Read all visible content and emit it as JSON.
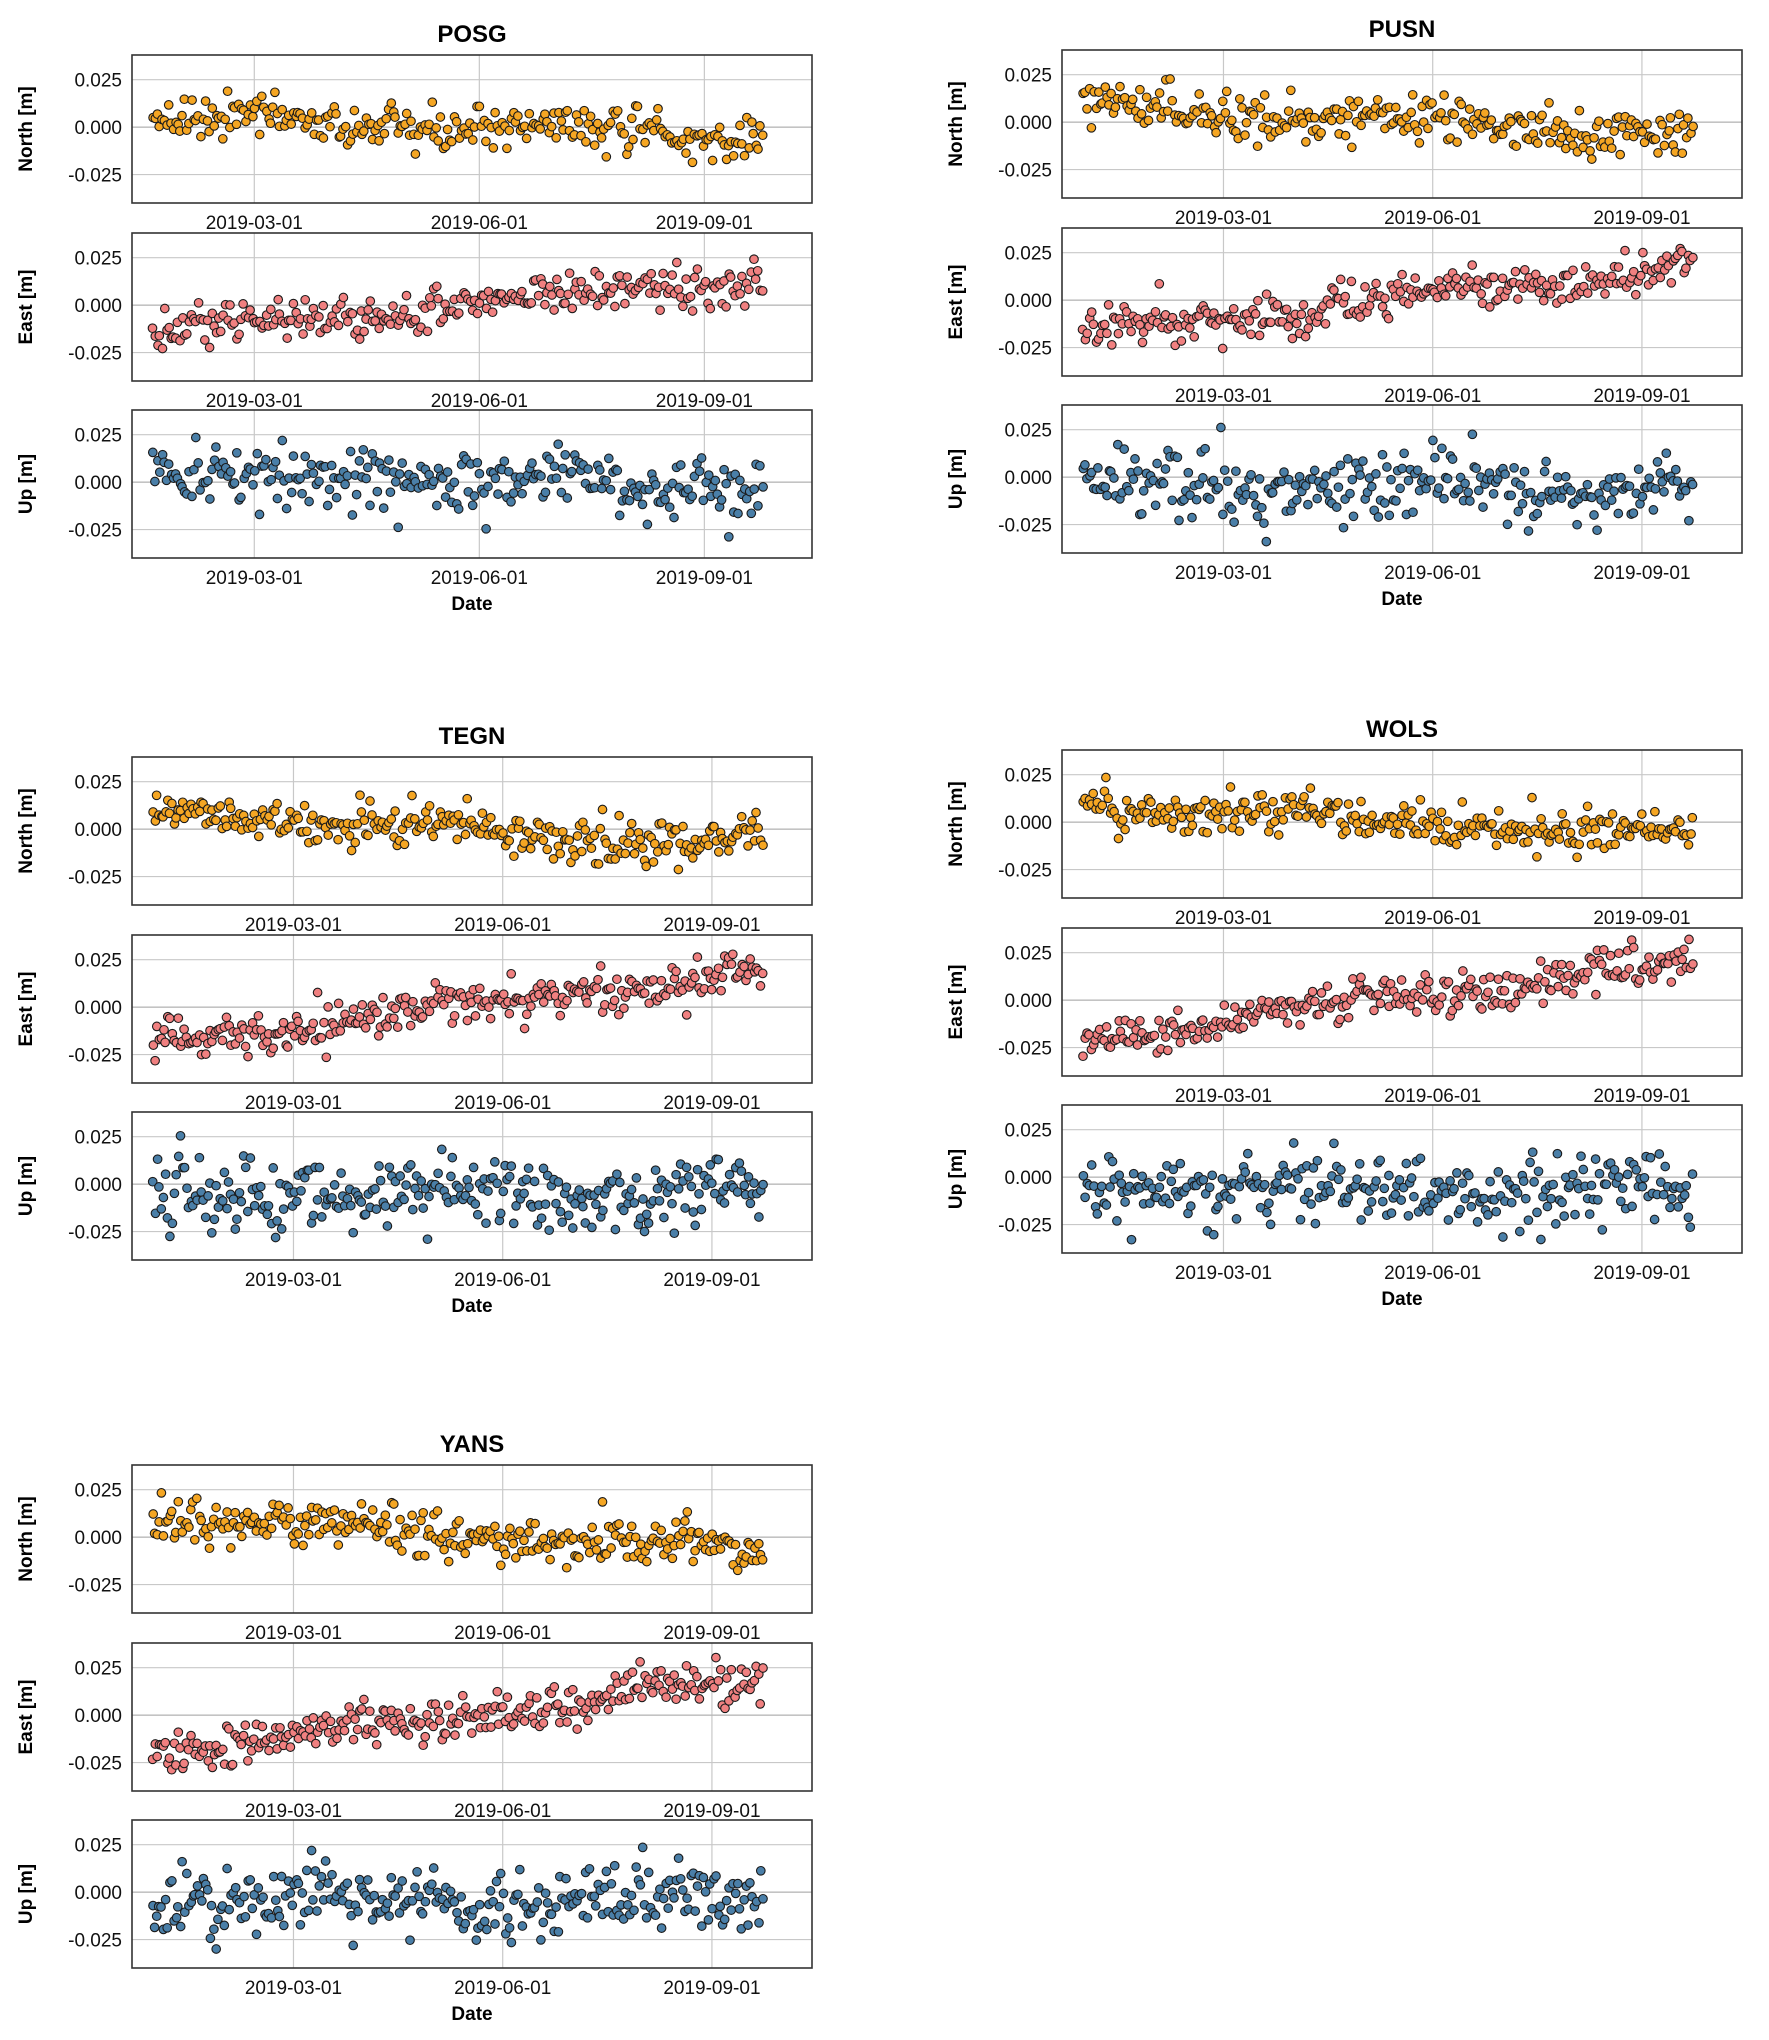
{
  "figure": {
    "xlabel": "Date",
    "ytick_labels": [
      "0.025",
      "0.000",
      "-0.025"
    ],
    "xtick_labels": [
      "2019-03-01",
      "2019-06-01",
      "2019-09-01"
    ]
  },
  "colors": {
    "north": "#f5a623",
    "east": "#f08080",
    "up": "#4a7fa8",
    "marker_edge": "#1a1a1a",
    "grid": "#c8c8c8"
  },
  "chart_data": [
    {
      "type": "scatter",
      "title": "POSG",
      "xlabel": "Date",
      "x_range": [
        "2019-01-10",
        "2019-10-15"
      ],
      "panels": [
        {
          "ylabel": "North [m]",
          "ylim": [
            -0.04,
            0.038
          ],
          "trend": [
            0.006,
            -0.006
          ],
          "scatter_sd": 0.0055,
          "n_points": 270
        },
        {
          "ylabel": "East [m]",
          "ylim": [
            -0.04,
            0.038
          ],
          "trend": [
            -0.015,
            0.015
          ],
          "scatter_sd": 0.0055,
          "n_points": 270
        },
        {
          "ylabel": "Up [m]",
          "ylim": [
            -0.04,
            0.038
          ],
          "trend": [
            0.004,
            -0.003
          ],
          "scatter_sd": 0.0085,
          "n_points": 270
        }
      ]
    },
    {
      "type": "scatter",
      "title": "PUSN",
      "xlabel": "Date",
      "x_range": [
        "2018-12-20",
        "2019-10-15"
      ],
      "panels": [
        {
          "ylabel": "North [m]",
          "ylim": [
            -0.04,
            0.038
          ],
          "trend": [
            0.009,
            -0.008
          ],
          "scatter_sd": 0.0055,
          "n_points": 280
        },
        {
          "ylabel": "East [m]",
          "ylim": [
            -0.04,
            0.038
          ],
          "trend": [
            -0.018,
            0.018
          ],
          "scatter_sd": 0.0055,
          "n_points": 280
        },
        {
          "ylabel": "Up [m]",
          "ylim": [
            -0.04,
            0.038
          ],
          "trend": [
            -0.003,
            -0.006
          ],
          "scatter_sd": 0.009,
          "n_points": 280
        }
      ]
    },
    {
      "type": "scatter",
      "title": "TEGN",
      "xlabel": "Date",
      "x_range": [
        "2018-12-20",
        "2019-10-15"
      ],
      "panels": [
        {
          "ylabel": "North [m]",
          "ylim": [
            -0.04,
            0.038
          ],
          "trend": [
            0.01,
            -0.009
          ],
          "scatter_sd": 0.0055,
          "n_points": 290
        },
        {
          "ylabel": "East [m]",
          "ylim": [
            -0.04,
            0.038
          ],
          "trend": [
            -0.019,
            0.019
          ],
          "scatter_sd": 0.0055,
          "n_points": 290
        },
        {
          "ylabel": "Up [m]",
          "ylim": [
            -0.04,
            0.038
          ],
          "trend": [
            -0.004,
            -0.006
          ],
          "scatter_sd": 0.009,
          "n_points": 290
        }
      ]
    },
    {
      "type": "scatter",
      "title": "WOLS",
      "xlabel": "Date",
      "x_range": [
        "2018-12-20",
        "2019-10-15"
      ],
      "panels": [
        {
          "ylabel": "North [m]",
          "ylim": [
            -0.04,
            0.038
          ],
          "trend": [
            0.009,
            -0.008
          ],
          "scatter_sd": 0.0055,
          "n_points": 290
        },
        {
          "ylabel": "East [m]",
          "ylim": [
            -0.04,
            0.038
          ],
          "trend": [
            -0.02,
            0.02
          ],
          "scatter_sd": 0.0055,
          "n_points": 290
        },
        {
          "ylabel": "Up [m]",
          "ylim": [
            -0.04,
            0.038
          ],
          "trend": [
            -0.005,
            -0.007
          ],
          "scatter_sd": 0.009,
          "n_points": 290
        }
      ]
    },
    {
      "type": "scatter",
      "title": "YANS",
      "xlabel": "Date",
      "x_range": [
        "2018-12-20",
        "2019-10-15"
      ],
      "panels": [
        {
          "ylabel": "North [m]",
          "ylim": [
            -0.04,
            0.038
          ],
          "trend": [
            0.011,
            -0.009
          ],
          "scatter_sd": 0.0055,
          "n_points": 290
        },
        {
          "ylabel": "East [m]",
          "ylim": [
            -0.04,
            0.038
          ],
          "trend": [
            -0.019,
            0.018
          ],
          "scatter_sd": 0.0055,
          "n_points": 290
        },
        {
          "ylabel": "Up [m]",
          "ylim": [
            -0.04,
            0.038
          ],
          "trend": [
            -0.004,
            -0.005
          ],
          "scatter_sd": 0.009,
          "n_points": 290
        }
      ]
    }
  ]
}
